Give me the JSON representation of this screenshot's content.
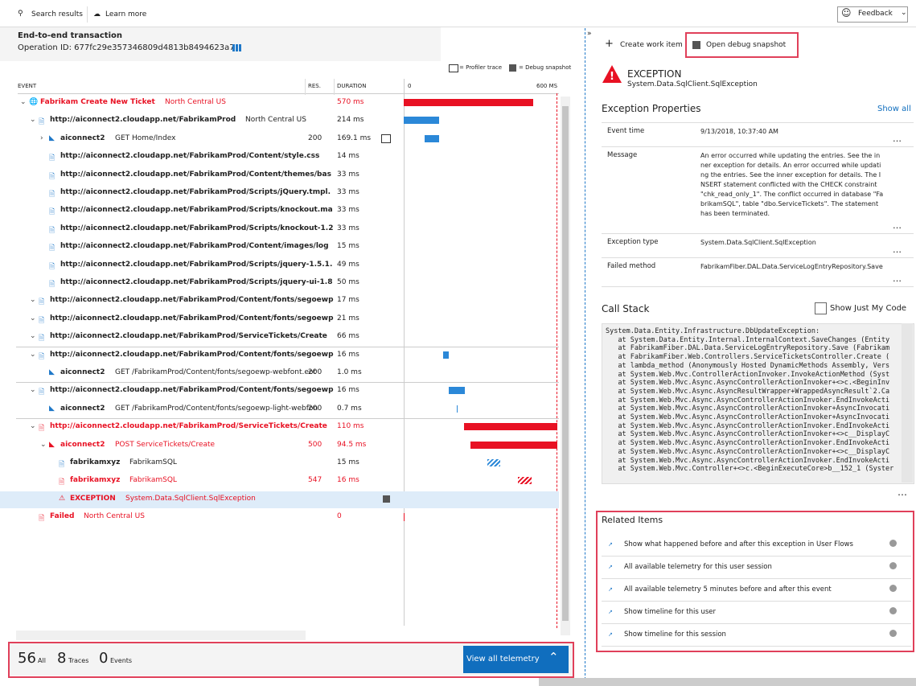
{
  "toolbar": {
    "search_results": "Search results",
    "learn_more": "Learn more",
    "feedback": "Feedback"
  },
  "header": {
    "title": "End-to-end transaction",
    "operation_id": "Operation ID: 677fc29e357346809d4813b8494623a7"
  },
  "legend": {
    "profiler": "= Profiler trace",
    "debug": "= Debug snapshot"
  },
  "columns": {
    "event": "EVENT",
    "res": "RES.",
    "duration": "DURATION",
    "start": "0",
    "end": "600 MS"
  },
  "rows": [
    {
      "name": "Fabrikam Create New Ticket",
      "detail": "North Central US",
      "duration": "570 ms"
    },
    {
      "name": "http://aiconnect2.cloudapp.net/FabrikamProd",
      "detail": "North Central US",
      "duration": "214 ms"
    },
    {
      "name": "aiconnect2",
      "detail": "GET Home/Index",
      "res": "200",
      "duration": "169.1 ms"
    },
    {
      "name": "http://aiconnect2.cloudapp.net/FabrikamProd/Content/style.css",
      "duration": "14 ms"
    },
    {
      "name": "http://aiconnect2.cloudapp.net/FabrikamProd/Content/themes/bas",
      "duration": "33 ms"
    },
    {
      "name": "http://aiconnect2.cloudapp.net/FabrikamProd/Scripts/jQuery.tmpl.",
      "duration": "33 ms"
    },
    {
      "name": "http://aiconnect2.cloudapp.net/FabrikamProd/Scripts/knockout.ma",
      "duration": "33 ms"
    },
    {
      "name": "http://aiconnect2.cloudapp.net/FabrikamProd/Scripts/knockout-1.2",
      "duration": "33 ms"
    },
    {
      "name": "http://aiconnect2.cloudapp.net/FabrikamProd/Content/images/log",
      "duration": "15 ms"
    },
    {
      "name": "http://aiconnect2.cloudapp.net/FabrikamProd/Scripts/jquery-1.5.1.",
      "duration": "49 ms"
    },
    {
      "name": "http://aiconnect2.cloudapp.net/FabrikamProd/Scripts/jquery-ui-1.8",
      "duration": "50 ms"
    },
    {
      "name": "http://aiconnect2.cloudapp.net/FabrikamProd/Content/fonts/segoewp",
      "duration": "17 ms"
    },
    {
      "name": "http://aiconnect2.cloudapp.net/FabrikamProd/Content/fonts/segoewp",
      "duration": "21 ms"
    },
    {
      "name": "http://aiconnect2.cloudapp.net/FabrikamProd/ServiceTickets/Create",
      "duration": "66 ms"
    },
    {
      "name": "http://aiconnect2.cloudapp.net/FabrikamProd/Content/fonts/segoewp",
      "duration": "16 ms"
    },
    {
      "name": "aiconnect2",
      "detail": "GET /FabrikamProd/Content/fonts/segoewp-webfont.eot",
      "res": "200",
      "duration": "1.0 ms"
    },
    {
      "name": "http://aiconnect2.cloudapp.net/FabrikamProd/Content/fonts/segoewp",
      "duration": "16 ms"
    },
    {
      "name": "aiconnect2",
      "detail": "GET /FabrikamProd/Content/fonts/segoewp-light-webfon",
      "res": "200",
      "duration": "0.7 ms"
    },
    {
      "name": "http://aiconnect2.cloudapp.net/FabrikamProd/ServiceTickets/Create",
      "duration": "110 ms"
    },
    {
      "name": "aiconnect2",
      "detail": "POST ServiceTickets/Create",
      "res": "500",
      "duration": "94.5 ms"
    },
    {
      "name": "fabrikamxyz",
      "detail": "FabrikamSQL",
      "duration": "15 ms"
    },
    {
      "name": "fabrikamxyz",
      "detail": "FabrikamSQL",
      "res": "547",
      "duration": "16 ms"
    },
    {
      "name": "EXCEPTION",
      "detail": "System.Data.SqlClient.SqlException"
    },
    {
      "name": "Failed",
      "detail": "North Central US",
      "duration": "0"
    }
  ],
  "footer": {
    "all_count": "56",
    "all": "All",
    "traces_count": "8",
    "traces": "Traces",
    "events_count": "0",
    "events": "Events",
    "view_all": "View all telemetry"
  },
  "details": {
    "create_work_item": "Create work item",
    "open_debug_snapshot": "Open debug snapshot",
    "exception_title": "EXCEPTION",
    "exception_type": "System.Data.SqlClient.SqlException",
    "properties_title": "Exception Properties",
    "show_all": "Show all",
    "properties": [
      {
        "label": "Event time",
        "value": "9/13/2018, 10:37:40 AM"
      },
      {
        "label": "Message",
        "value": "An error occurred while updating the entries. See the inner exception for details. An error occurred while updating the entries. See the inner exception for details. The INSERT statement conflicted with the CHECK constraint \"chk_read_only_1\". The conflict occurred in database \"FabrikamSQL\", table \"dbo.ServiceTickets\". The statement has been terminated."
      },
      {
        "label": "Exception type",
        "value": "System.Data.SqlClient.SqlException"
      },
      {
        "label": "Failed method",
        "value": "FabrikamFiber.DAL.Data.ServiceLogEntryRepository.Save"
      }
    ],
    "call_stack_title": "Call Stack",
    "just_my_code": "Show Just My Code",
    "call_stack": [
      "System.Data.Entity.Infrastructure.DbUpdateException:",
      "   at System.Data.Entity.Internal.InternalContext.SaveChanges (Entity",
      "   at FabrikamFiber.DAL.Data.ServiceLogEntryRepository.Save (Fabrikam",
      "   at FabrikamFiber.Web.Controllers.ServiceTicketsController.Create (",
      "   at lambda_method (Anonymously Hosted DynamicMethods Assembly, Vers",
      "   at System.Web.Mvc.ControllerActionInvoker.InvokeActionMethod (Syst",
      "   at System.Web.Mvc.Async.AsyncControllerActionInvoker+<>c.<BeginInv",
      "   at System.Web.Mvc.Async.AsyncResultWrapper+WrappedAsyncResult`2.Ca",
      "   at System.Web.Mvc.Async.AsyncControllerActionInvoker.EndInvokeActi",
      "   at System.Web.Mvc.Async.AsyncControllerActionInvoker+AsyncInvocati",
      "   at System.Web.Mvc.Async.AsyncControllerActionInvoker+AsyncInvocati",
      "   at System.Web.Mvc.Async.AsyncControllerActionInvoker.EndInvokeActi",
      "   at System.Web.Mvc.Async.AsyncControllerActionInvoker+<>c__DisplayC",
      "   at System.Web.Mvc.Async.AsyncControllerActionInvoker.EndInvokeActi",
      "   at System.Web.Mvc.Async.AsyncControllerActionInvoker+<>c__DisplayC",
      "   at System.Web.Mvc.Async.AsyncControllerActionInvoker.EndInvokeActi",
      "   at System.Web.Mvc.Controller+<>c.<BeginExecuteCore>b__152_1 (Syster"
    ],
    "related_title": "Related Items",
    "related": [
      "Show what happened before and after this exception in User Flows",
      "All available telemetry for this user session",
      "All available telemetry 5 minutes before and after this event",
      "Show timeline for this user",
      "Show timeline for this session"
    ]
  }
}
